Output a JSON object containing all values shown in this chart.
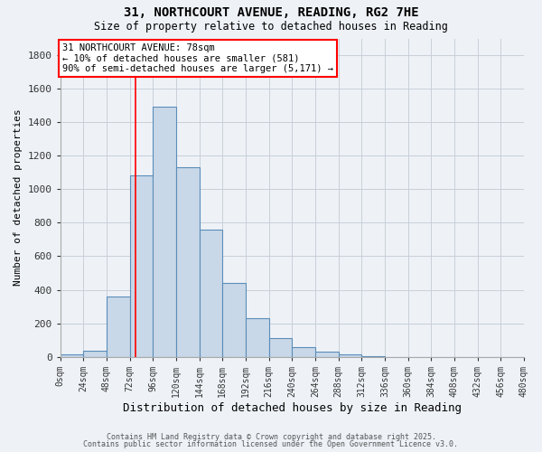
{
  "title": "31, NORTHCOURT AVENUE, READING, RG2 7HE",
  "subtitle": "Size of property relative to detached houses in Reading",
  "bar_values": [
    15,
    35,
    360,
    1080,
    1490,
    1130,
    760,
    440,
    230,
    110,
    55,
    30,
    15,
    5,
    0,
    0,
    0,
    0,
    0,
    0
  ],
  "bin_edges": [
    0,
    24,
    48,
    72,
    96,
    120,
    144,
    168,
    192,
    216,
    240,
    264,
    288,
    312,
    336,
    360,
    384,
    408,
    432,
    456,
    480
  ],
  "bin_labels": [
    "0sqm",
    "24sqm",
    "48sqm",
    "72sqm",
    "96sqm",
    "120sqm",
    "144sqm",
    "168sqm",
    "192sqm",
    "216sqm",
    "240sqm",
    "264sqm",
    "288sqm",
    "312sqm",
    "336sqm",
    "360sqm",
    "384sqm",
    "408sqm",
    "432sqm",
    "456sqm",
    "480sqm"
  ],
  "bar_color": "#c8d8e8",
  "bar_edge_color": "#5b8db8",
  "ylabel": "Number of detached properties",
  "xlabel": "Distribution of detached houses by size in Reading",
  "ylim": [
    0,
    1900
  ],
  "yticks": [
    0,
    200,
    400,
    600,
    800,
    1000,
    1200,
    1400,
    1600,
    1800
  ],
  "red_line_x": 78,
  "annotation_title": "31 NORTHCOURT AVENUE: 78sqm",
  "annotation_line1": "← 10% of detached houses are smaller (581)",
  "annotation_line2": "90% of semi-detached houses are larger (5,171) →",
  "background_color": "#eef2f7",
  "grid_color": "#c8cfd8",
  "footer1": "Contains HM Land Registry data © Crown copyright and database right 2025.",
  "footer2": "Contains public sector information licensed under the Open Government Licence v3.0."
}
